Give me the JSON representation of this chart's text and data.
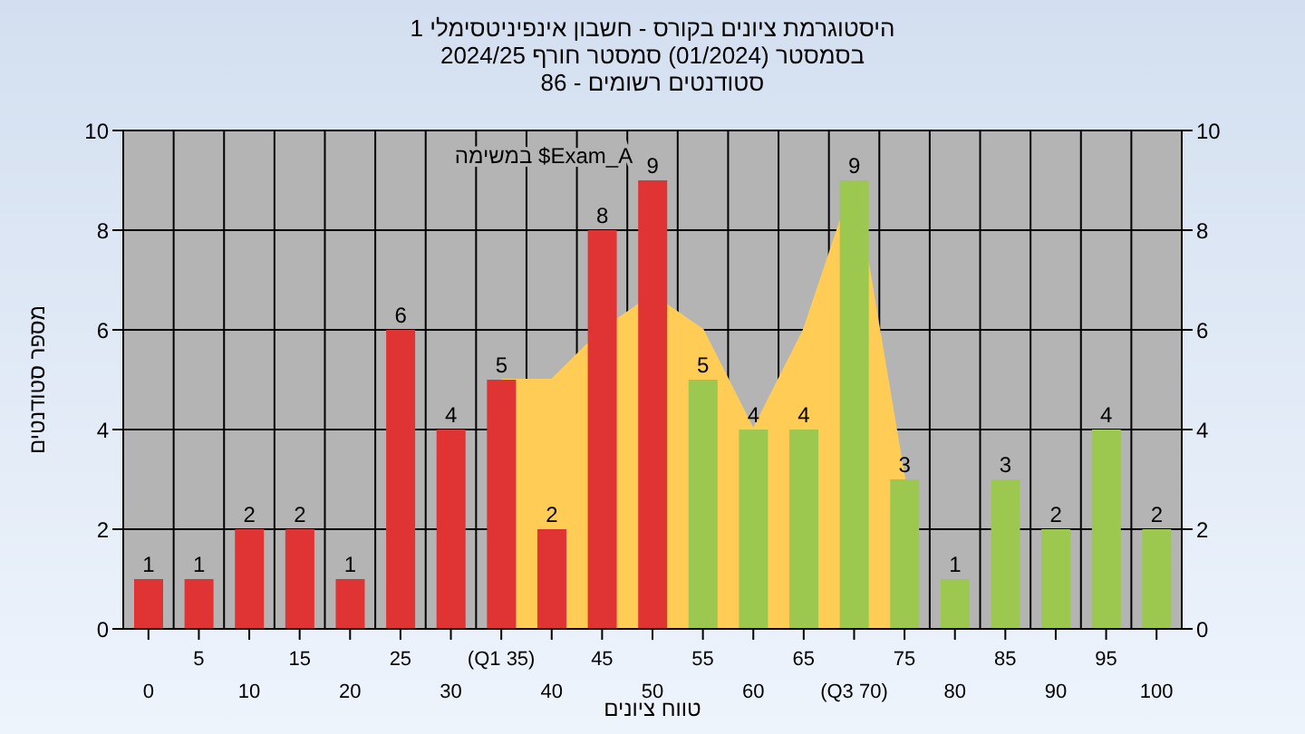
{
  "chart_data": {
    "type": "bar",
    "title": "היסטוגרמת ציונים בקורס - חשבון אינפיניטסימלי 1",
    "subtitle": "בסמסטר  (01/2024)  סמסטר חורף 2024/25\nסטודנטים רשומים - 86",
    "xlabel": "טווח ציונים",
    "ylabel": "מספר סטודנטים",
    "annotations": [
      "במשימה $Exam_A"
    ],
    "categories": [
      "0",
      "5",
      "10",
      "15",
      "20",
      "25",
      "30",
      "(Q1 35)",
      "40",
      "45",
      "50",
      "55",
      "60",
      "65",
      "(Q3 70)",
      "75",
      "80",
      "85",
      "90",
      "95",
      "100"
    ],
    "series": [
      {
        "type": "area",
        "color": "#ffcc55",
        "values": [
          null,
          null,
          null,
          null,
          null,
          null,
          null,
          5,
          5,
          6,
          6.7,
          6,
          4,
          6,
          9,
          3,
          null,
          null,
          null,
          null,
          null
        ]
      },
      {
        "colors": [
          "#e03434",
          "#e03434",
          "#e03434",
          "#e03434",
          "#e03434",
          "#e03434",
          "#e03434",
          "#e03434",
          "#e03434",
          "#e03434",
          "#e03434",
          "#9cc850",
          "#9cc850",
          "#9cc850",
          "#9cc850",
          "#9cc850",
          "#9cc850",
          "#9cc850",
          "#9cc850",
          "#9cc850",
          "#9cc850"
        ],
        "values": [
          1,
          1,
          2,
          2,
          1,
          6,
          4,
          5,
          2,
          8,
          9,
          5,
          4,
          4,
          9,
          3,
          1,
          3,
          2,
          4,
          2
        ],
        "value_labels": [
          "1",
          "1",
          "2",
          "2",
          "1",
          "6",
          "4",
          "5",
          "2",
          "8",
          "9",
          "5",
          "4",
          "4",
          "9",
          "3",
          "1",
          "3",
          "2",
          "4",
          "2"
        ]
      }
    ],
    "ylim": [
      0,
      10
    ],
    "yticks": [
      0,
      2,
      4,
      6,
      8,
      10
    ],
    "y2lim": [
      0,
      10
    ],
    "y2ticks": [
      0,
      2,
      4,
      6,
      8,
      10
    ],
    "grid": true
  }
}
